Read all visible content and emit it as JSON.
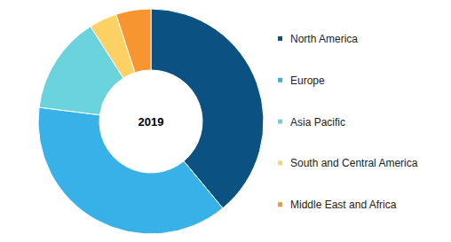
{
  "chart_data": {
    "type": "donut",
    "title": "2019",
    "categories": [
      "North America",
      "Europe",
      "Asia Pacific",
      "South and Central America",
      "Middle East and Africa"
    ],
    "values": [
      39,
      38,
      14,
      4,
      5
    ],
    "colors": [
      "#0b5282",
      "#37b1e8",
      "#6ad3dc",
      "#fdd163",
      "#f79531"
    ],
    "legend": "right"
  }
}
